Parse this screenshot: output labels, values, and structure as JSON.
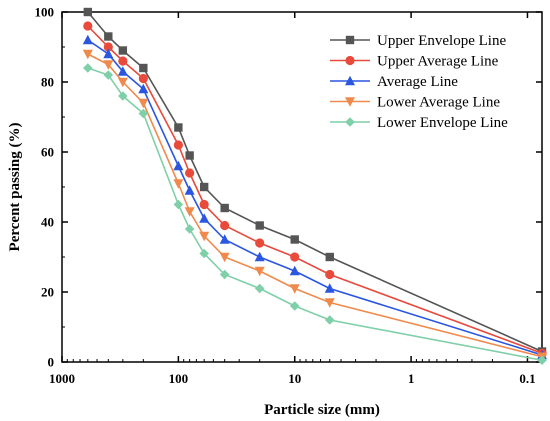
{
  "chart_data": {
    "type": "line",
    "title": "",
    "xlabel": "Particle size (mm)",
    "ylabel": "Percent passing (%)",
    "x_scale": "log",
    "x_reversed": true,
    "xlim": [
      1000,
      0.075
    ],
    "ylim": [
      0,
      100
    ],
    "x_ticks": [
      1000,
      100,
      10,
      1,
      0.1
    ],
    "x_tick_labels": [
      "1000",
      "100",
      "10",
      "1",
      "0.1"
    ],
    "y_ticks": [
      0,
      20,
      40,
      60,
      80,
      100
    ],
    "y_tick_labels": [
      "0",
      "20",
      "40",
      "60",
      "80",
      "100"
    ],
    "legend_position": "top-right",
    "grid": false,
    "series": [
      {
        "name": "Upper Envelope Line",
        "color": "#555555",
        "marker": "square",
        "x": [
          600,
          400,
          300,
          200,
          100,
          80,
          60,
          40,
          20,
          10,
          5,
          0.075
        ],
        "y": [
          100,
          93,
          89,
          84,
          67,
          59,
          50,
          44,
          39,
          35,
          30,
          3
        ]
      },
      {
        "name": "Upper Average Line",
        "color": "#e84a3c",
        "marker": "circle",
        "x": [
          600,
          400,
          300,
          200,
          100,
          80,
          60,
          40,
          20,
          10,
          5,
          0.075
        ],
        "y": [
          96,
          90,
          86,
          81,
          62,
          54,
          45,
          39,
          34,
          30,
          25,
          2.5
        ]
      },
      {
        "name": "Average Line",
        "color": "#2a56e0",
        "marker": "triangle-up",
        "x": [
          600,
          400,
          300,
          200,
          100,
          80,
          60,
          40,
          20,
          10,
          5,
          0.075
        ],
        "y": [
          92,
          88,
          83,
          78,
          56,
          49,
          41,
          35,
          30,
          26,
          21,
          2
        ]
      },
      {
        "name": "Lower Average Line",
        "color": "#f08a4c",
        "marker": "triangle-down",
        "x": [
          600,
          400,
          300,
          200,
          100,
          80,
          60,
          40,
          20,
          10,
          5,
          0.075
        ],
        "y": [
          88,
          85,
          80,
          74,
          51,
          43,
          36,
          30,
          26,
          21,
          17,
          1.5
        ]
      },
      {
        "name": "Lower Envelope Line",
        "color": "#7fcfa8",
        "marker": "diamond",
        "x": [
          600,
          400,
          300,
          200,
          100,
          80,
          60,
          40,
          20,
          10,
          5,
          0.075
        ],
        "y": [
          84,
          82,
          76,
          71,
          45,
          38,
          31,
          25,
          21,
          16,
          12,
          0.5
        ]
      }
    ]
  }
}
